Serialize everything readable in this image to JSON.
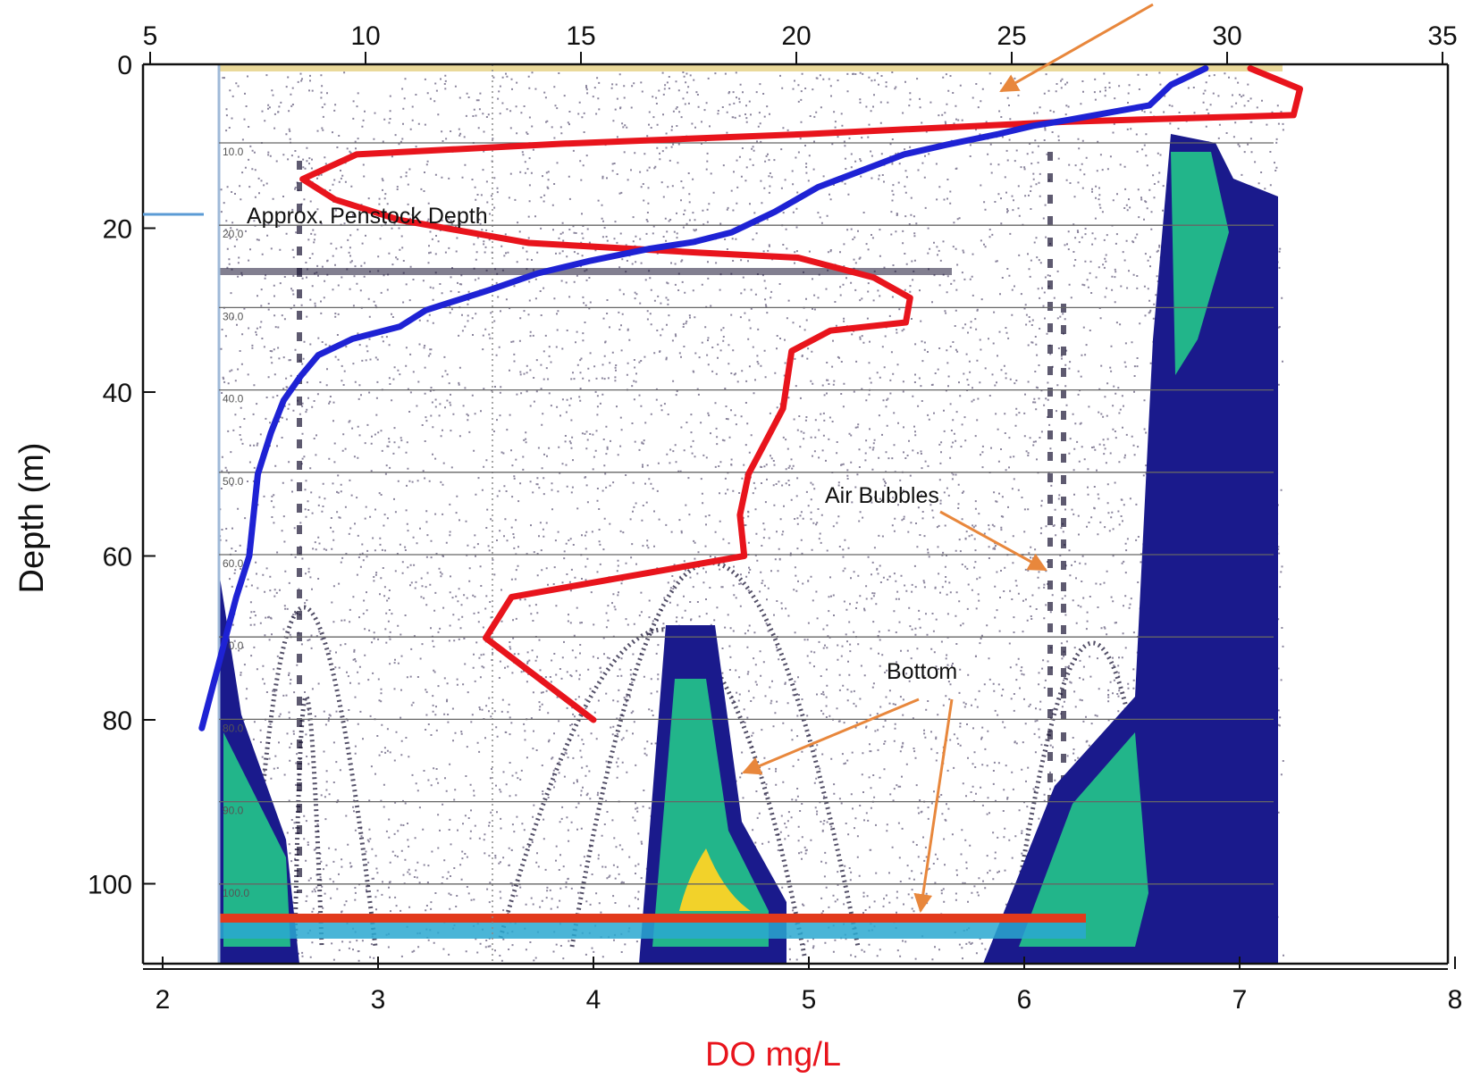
{
  "chart_data": {
    "type": "line",
    "xlabel": "DO mg/L",
    "ylabel": "Depth (m)",
    "ylim": [
      0,
      110
    ],
    "y_ticks": [
      0,
      20,
      40,
      60,
      80,
      100
    ],
    "bottom_axis": {
      "range": [
        2,
        8
      ],
      "ticks": [
        2,
        3,
        4,
        5,
        6,
        7,
        8
      ]
    },
    "top_axis": {
      "range": [
        5,
        35
      ],
      "ticks": [
        5,
        10,
        15,
        20,
        25,
        30,
        35
      ]
    },
    "echogram_depth_labels": [
      "10.0",
      "20.0",
      "30.0",
      "40.0",
      "50.0",
      "60.0",
      "70.0",
      "80.0",
      "90.0",
      "100.0"
    ],
    "grid": true,
    "series": [
      {
        "color": "#e8141c",
        "axis": "bottom",
        "points": [
          [
            7.05,
            0.5
          ],
          [
            7.28,
            3
          ],
          [
            7.25,
            6.2
          ],
          [
            6.2,
            7.0
          ],
          [
            5.0,
            8.5
          ],
          [
            3.85,
            9.7
          ],
          [
            2.9,
            11
          ],
          [
            2.65,
            14
          ],
          [
            2.8,
            16.5
          ],
          [
            3.1,
            19
          ],
          [
            3.7,
            21.8
          ],
          [
            4.5,
            23
          ],
          [
            4.95,
            23.6
          ],
          [
            5.3,
            26
          ],
          [
            5.47,
            28.5
          ],
          [
            5.45,
            31.5
          ],
          [
            5.1,
            32.5
          ],
          [
            4.92,
            35
          ],
          [
            4.88,
            42
          ],
          [
            4.72,
            50
          ],
          [
            4.68,
            55
          ],
          [
            4.7,
            60
          ],
          [
            3.62,
            65
          ],
          [
            3.5,
            70
          ],
          [
            4.0,
            80
          ]
        ]
      },
      {
        "color": "#1e22d4",
        "axis": "top",
        "points": [
          [
            29.5,
            0.5
          ],
          [
            28.7,
            2.5
          ],
          [
            28.2,
            5
          ],
          [
            26.3,
            6.8
          ],
          [
            25.5,
            7.5
          ],
          [
            24.7,
            8.5
          ],
          [
            23.5,
            9.8
          ],
          [
            22.5,
            11
          ],
          [
            21.5,
            13
          ],
          [
            20.5,
            15
          ],
          [
            19.5,
            18
          ],
          [
            18.5,
            20.5
          ],
          [
            17.6,
            21.7
          ],
          [
            16.6,
            22.5
          ],
          [
            15.2,
            24
          ],
          [
            14.0,
            25.5
          ],
          [
            12.9,
            27.5
          ],
          [
            11.4,
            30
          ],
          [
            10.8,
            32
          ],
          [
            9.7,
            33.5
          ],
          [
            8.9,
            35.5
          ],
          [
            8.5,
            38
          ],
          [
            8.1,
            41
          ],
          [
            7.8,
            45
          ],
          [
            7.5,
            50
          ],
          [
            7.3,
            60
          ],
          [
            7.0,
            65
          ],
          [
            6.5,
            75
          ],
          [
            6.2,
            81
          ]
        ]
      }
    ],
    "annotations": [
      {
        "text": "Approx. Penstock Depth",
        "depth": 18.5
      },
      {
        "text": "Air Bubbles"
      },
      {
        "text": "Bottom"
      }
    ]
  },
  "colors": {
    "do_line": "#e8141c",
    "temp_line": "#1e22d4",
    "arrow": "#e8873c",
    "penstock_marker": "#5b9bd5",
    "axis_title_do": "#e8141c",
    "axis_title_depth": "#111111",
    "surface_band": "#ead99a"
  }
}
